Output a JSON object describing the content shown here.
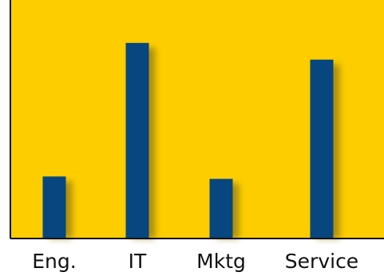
{
  "chart_data": {
    "type": "bar",
    "categories": [
      "Eng.",
      "IT",
      "Mktg",
      "Service"
    ],
    "values": [
      26,
      82,
      25,
      75
    ],
    "title": "",
    "xlabel": "",
    "ylabel": "",
    "ylim": [
      0,
      100
    ],
    "grid": false,
    "legend": "none"
  },
  "colors": {
    "plot_background": "#FDCD00",
    "bar": "#07467F",
    "bar_shadow": "#8F7A16",
    "axis": "#111111",
    "page_background": "#FFFFFF"
  }
}
